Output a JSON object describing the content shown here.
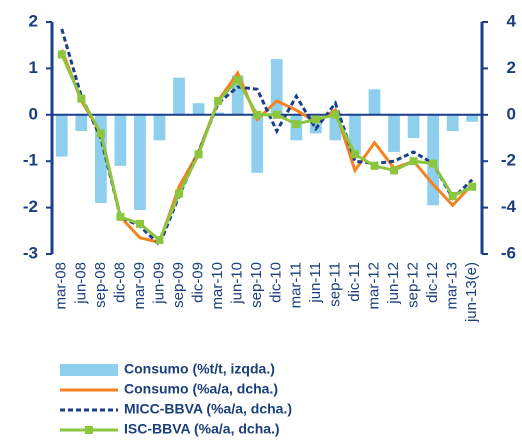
{
  "chart_data": {
    "type": "combo",
    "categories": [
      "mar-08",
      "jun-08",
      "sep-08",
      "dic-08",
      "mar-09",
      "jun-09",
      "sep-09",
      "dic-09",
      "mar-10",
      "jun-10",
      "sep-10",
      "dic-10",
      "mar-11",
      "jun-11",
      "sep-11",
      "dic-11",
      "mar-12",
      "jun-12",
      "sep-12",
      "dic-12",
      "mar-13",
      "jun-13(e)"
    ],
    "ylim": [
      -3,
      2
    ],
    "yticks": [
      -3,
      -2,
      -1,
      0,
      1,
      2
    ],
    "y2lim": [
      -6,
      4
    ],
    "y2ticks": [
      -6,
      -4,
      -2,
      0,
      2,
      4
    ],
    "legend": "bottom",
    "series": [
      {
        "name": "Consumo (%t/t, izqda.)",
        "type": "bar",
        "color": "#8ecfee",
        "values": [
          -0.9,
          -0.35,
          -1.9,
          -1.1,
          -2.05,
          -0.55,
          0.8,
          0.25,
          0.05,
          0.85,
          -1.25,
          1.2,
          -0.55,
          -0.4,
          -0.55,
          -0.85,
          0.55,
          -0.8,
          -0.5,
          -1.95,
          -0.35,
          -0.15
        ]
      },
      {
        "name": "Consumo (%a/a, dcha.)",
        "type": "line",
        "axis": "y2",
        "color": "#f58220",
        "values": [
          2.8,
          0.6,
          -0.8,
          -4.4,
          -5.3,
          -5.5,
          -3.1,
          -1.6,
          0.6,
          1.8,
          -0.2,
          0.6,
          0.2,
          -0.3,
          0.2,
          -2.4,
          -1.2,
          -2.3,
          -2.0,
          -3.0,
          -3.9,
          -3.0
        ]
      },
      {
        "name": "MICC-BBVA (%a/a, dcha.)",
        "type": "line",
        "axis": "y2",
        "color": "#1b3f8b",
        "dashed": true,
        "values": [
          3.7,
          0.8,
          -1.0,
          -4.4,
          -4.8,
          -5.6,
          -3.5,
          -1.6,
          0.5,
          1.2,
          1.1,
          -0.7,
          0.8,
          -0.6,
          0.5,
          -2.0,
          -2.1,
          -2.0,
          -1.6,
          -2.1,
          -3.6,
          -2.8
        ]
      },
      {
        "name": "ISC-BBVA (%a/a, dcha.)",
        "type": "line",
        "axis": "y2",
        "color": "#8cc63f",
        "marker": "square",
        "values": [
          2.6,
          0.7,
          -0.8,
          -4.4,
          -4.7,
          -5.4,
          -3.4,
          -1.7,
          0.6,
          1.5,
          0.0,
          0.0,
          -0.4,
          -0.2,
          0.0,
          -1.7,
          -2.2,
          -2.4,
          -2.0,
          -2.1,
          -3.5,
          -3.1
        ]
      }
    ]
  }
}
